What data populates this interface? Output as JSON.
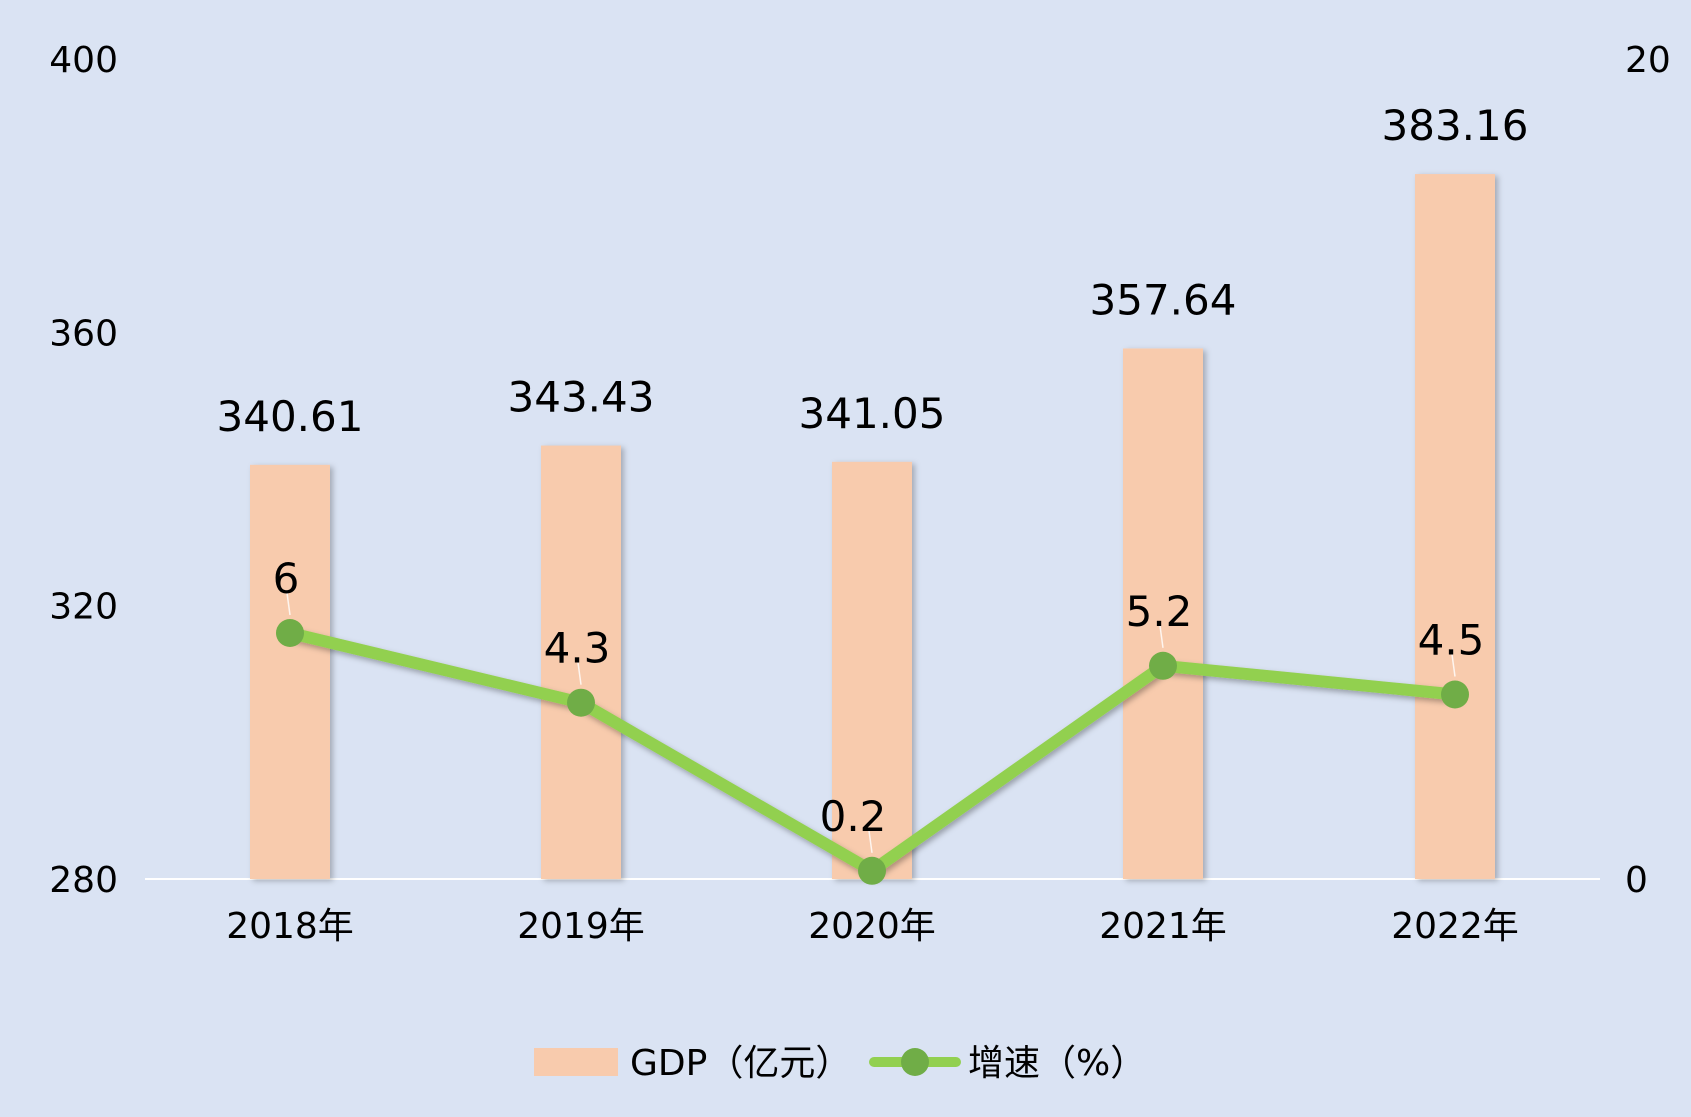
{
  "chart_data": {
    "type": "bar",
    "categories": [
      "2018年",
      "2019年",
      "2020年",
      "2021年",
      "2022年"
    ],
    "series": [
      {
        "name": "GDP（亿元）",
        "type": "bar",
        "axis": "left",
        "values": [
          340.61,
          343.43,
          341.05,
          357.64,
          383.16
        ],
        "labels": [
          "340.61",
          "343.43",
          "341.05",
          "357.64",
          "383.16"
        ]
      },
      {
        "name": "增速（%）",
        "type": "line",
        "axis": "right",
        "values": [
          6,
          4.3,
          0.2,
          5.2,
          4.5
        ],
        "labels": [
          "6",
          "4.3",
          "0.2",
          "5.2",
          "4.5"
        ]
      }
    ],
    "y_left": {
      "min": 280,
      "max": 400,
      "ticks": [
        "400",
        "360",
        "320",
        "280"
      ],
      "tick_values": [
        400,
        360,
        320,
        280
      ]
    },
    "y_right": {
      "min": 0,
      "max": 20,
      "ticks": [
        "20",
        "0"
      ],
      "tick_values": [
        20,
        0
      ]
    },
    "legend": "bottom",
    "grid": false
  },
  "colors": {
    "background": "#dae3f3",
    "bar": "#f8cbad",
    "line": "#92d050",
    "marker": "#70ad47",
    "axis_line": "#ffffff"
  }
}
